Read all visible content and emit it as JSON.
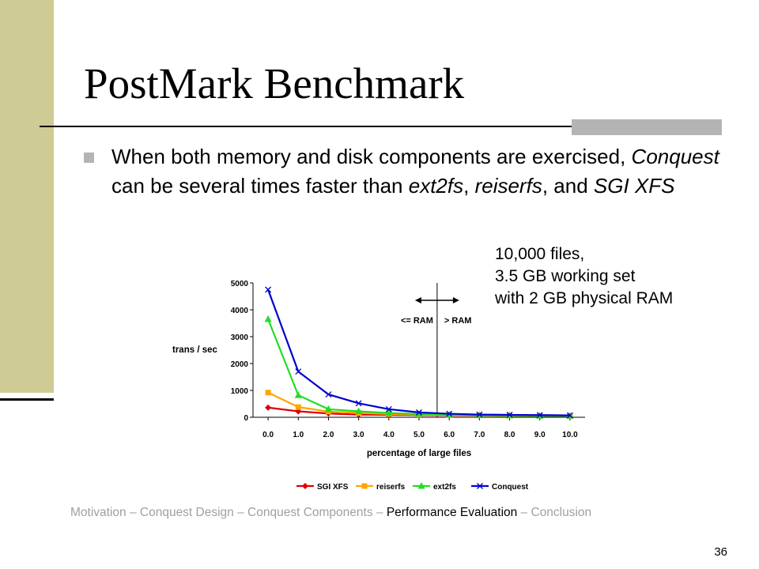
{
  "slide": {
    "title": "PostMark Benchmark",
    "bullet_parts": [
      {
        "text": "When both memory and disk components are exercised, ",
        "italic": false
      },
      {
        "text": "Conquest",
        "italic": true
      },
      {
        "text": " can be several times faster than ",
        "italic": false
      },
      {
        "text": "ext2fs",
        "italic": true
      },
      {
        "text": ", ",
        "italic": false
      },
      {
        "text": "reiserfs",
        "italic": true
      },
      {
        "text": ", and ",
        "italic": false
      },
      {
        "text": "SGI XFS",
        "italic": true
      }
    ],
    "note_lines": [
      "10,000 files,",
      "3.5 GB working set",
      "with 2 GB physical RAM"
    ],
    "footer": {
      "items": [
        "Motivation",
        "Conquest Design",
        "Conquest Components",
        "Performance Evaluation",
        "Conclusion"
      ],
      "separator": " – ",
      "current_index": 3
    },
    "page_number": "36",
    "colors": {
      "side_bar": "#cfcb94",
      "accent_bar": "#b4b4b4",
      "footer_text": "#a0a0a0"
    }
  },
  "chart_data": {
    "type": "line",
    "x": [
      0.0,
      1.0,
      2.0,
      3.0,
      4.0,
      5.0,
      6.0,
      7.0,
      8.0,
      9.0,
      10.0
    ],
    "x_tick_labels": [
      "0.0",
      "1.0",
      "2.0",
      "3.0",
      "4.0",
      "5.0",
      "6.0",
      "7.0",
      "8.0",
      "9.0",
      "10.0"
    ],
    "y_ticks": [
      "0",
      "1000",
      "2000",
      "3000",
      "4000",
      "5000"
    ],
    "ylim": [
      0,
      5000
    ],
    "xlabel": "percentage of large files",
    "ylabel": "trans / sec",
    "legend": "bottom",
    "grid": false,
    "ram_divider": {
      "x": 5.6,
      "left_label": "<= RAM",
      "right_label": "> RAM"
    },
    "series": [
      {
        "name": "SGI XFS",
        "color": "#dd0000",
        "marker": "diamond",
        "values": [
          360,
          220,
          140,
          100,
          90,
          80,
          70,
          60,
          55,
          50,
          45
        ]
      },
      {
        "name": "reiserfs",
        "color": "#ffa500",
        "marker": "square",
        "values": [
          920,
          380,
          210,
          160,
          120,
          100,
          80,
          70,
          60,
          55,
          50
        ]
      },
      {
        "name": "ext2fs",
        "color": "#22dd22",
        "marker": "triangle",
        "values": [
          3650,
          820,
          300,
          220,
          160,
          120,
          90,
          75,
          65,
          55,
          50
        ]
      },
      {
        "name": "Conquest",
        "color": "#0000cc",
        "marker": "x",
        "values": [
          4750,
          1700,
          850,
          520,
          300,
          180,
          130,
          100,
          90,
          80,
          70
        ]
      }
    ]
  }
}
